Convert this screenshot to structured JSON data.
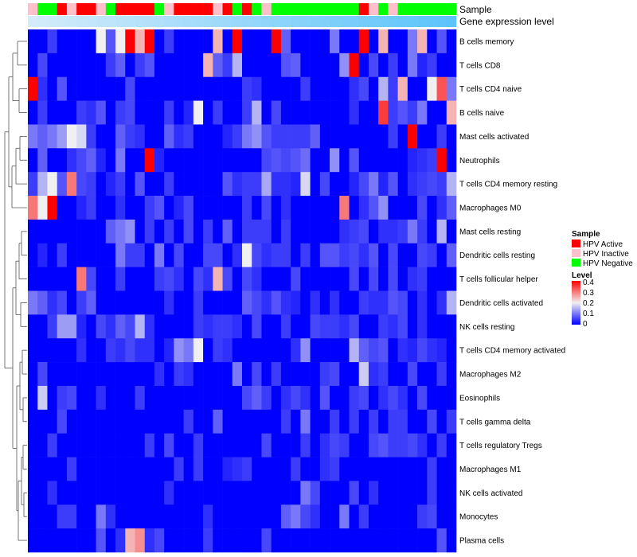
{
  "chart_data": {
    "type": "heatmap",
    "track_labels": [
      "Sample",
      "Gene expression level"
    ],
    "sample_groups": [
      "Inactive",
      "Negative",
      "Negative",
      "Active",
      "Inactive",
      "Active",
      "Active",
      "Inactive",
      "Negative",
      "Active",
      "Active",
      "Active",
      "Active",
      "Negative",
      "Inactive",
      "Active",
      "Active",
      "Active",
      "Active",
      "Inactive",
      "Active",
      "Negative",
      "Active",
      "Negative",
      "Inactive",
      "Negative",
      "Negative",
      "Negative",
      "Negative",
      "Negative",
      "Negative",
      "Negative",
      "Negative",
      "Negative",
      "Active",
      "Inactive",
      "Negative",
      "Inactive",
      "Negative",
      "Negative",
      "Negative",
      "Negative",
      "Negative",
      "Negative"
    ],
    "rows": [
      "B cells memory",
      "T cells CD8",
      "T cells CD4 naive",
      "B cells naive",
      "Mast cells activated",
      "Neutrophils",
      "T cells CD4 memory resting",
      "Macrophages M0",
      "Mast cells resting",
      "Dendritic cells resting",
      "T cells follicular helper",
      "Dendritic cells activated",
      "NK cells resting",
      "T cells CD4 memory activated",
      "Macrophages M2",
      "Eosinophils",
      "T cells gamma delta",
      "T cells regulatory  Tregs",
      "Macrophages M1",
      "NK cells activated",
      "Monocytes",
      "Plasma cells"
    ],
    "values": [
      [
        0,
        0,
        0.05,
        0,
        0,
        0,
        0,
        0.2,
        0.07,
        0.2,
        0.4,
        0.25,
        0.4,
        0,
        0.05,
        0,
        0,
        0,
        0,
        0.25,
        0,
        0.4,
        0,
        0,
        0,
        0.4,
        0.08,
        0,
        0,
        0,
        0,
        0.1,
        0,
        0,
        0.4,
        0,
        0.25,
        0,
        0,
        0.1,
        0.25,
        0,
        0.07,
        0
      ],
      [
        0,
        0.06,
        0,
        0,
        0,
        0,
        0,
        0,
        0.05,
        0.08,
        0,
        0.05,
        0.07,
        0,
        0,
        0,
        0,
        0,
        0.25,
        0.08,
        0.05,
        0.15,
        0,
        0,
        0,
        0,
        0.07,
        0.08,
        0,
        0,
        0,
        0,
        0.12,
        0.4,
        0,
        0.06,
        0,
        0.05,
        0,
        0.1,
        0.03,
        0.05,
        0,
        0
      ],
      [
        0.4,
        0.04,
        0,
        0.07,
        0,
        0,
        0,
        0,
        0,
        0,
        0.06,
        0,
        0,
        0,
        0,
        0,
        0,
        0,
        0,
        0,
        0,
        0,
        0.05,
        0.04,
        0,
        0,
        0,
        0,
        0.05,
        0,
        0,
        0,
        0,
        0.04,
        0.06,
        0,
        0.15,
        0.05,
        0.25,
        0,
        0,
        0.2,
        0.33,
        0.1
      ],
      [
        0,
        0.05,
        0,
        0,
        0,
        0.05,
        0.04,
        0.07,
        0,
        0.05,
        0.06,
        0,
        0,
        0,
        0.05,
        0,
        0.03,
        0.2,
        0,
        0.05,
        0,
        0,
        0.05,
        0.15,
        0,
        0.06,
        0,
        0,
        0,
        0,
        0,
        0,
        0,
        0.04,
        0,
        0,
        0.35,
        0.05,
        0.07,
        0.05,
        0.1,
        0,
        0,
        0.25
      ],
      [
        0.1,
        0.08,
        0.1,
        0.13,
        0.2,
        0.18,
        0.05,
        0,
        0,
        0.08,
        0.05,
        0.04,
        0,
        0,
        0.08,
        0.04,
        0.05,
        0,
        0,
        0,
        0.03,
        0.05,
        0.1,
        0.12,
        0.07,
        0.05,
        0.05,
        0.05,
        0.05,
        0.08,
        0,
        0,
        0,
        0,
        0,
        0,
        0,
        0.05,
        0,
        0.4,
        0,
        0,
        0.05,
        0
      ],
      [
        0,
        0.08,
        0,
        0,
        0.04,
        0.06,
        0.08,
        0.03,
        0,
        0.1,
        0,
        0,
        0.4,
        0.03,
        0,
        0,
        0,
        0,
        0,
        0,
        0,
        0,
        0,
        0,
        0.06,
        0.07,
        0.06,
        0.07,
        0.09,
        0,
        0,
        0.12,
        0,
        0.07,
        0,
        0,
        0,
        0,
        0,
        0.03,
        0.04,
        0.05,
        0.4,
        0
      ],
      [
        0.05,
        0.15,
        0.2,
        0.07,
        0.3,
        0.06,
        0.05,
        0,
        0.03,
        0.05,
        0,
        0.07,
        0,
        0,
        0.05,
        0,
        0,
        0,
        0,
        0,
        0.07,
        0.04,
        0.05,
        0.05,
        0.14,
        0.04,
        0.04,
        0.03,
        0.18,
        0,
        0.06,
        0,
        0,
        0.03,
        0.06,
        0.1,
        0.03,
        0.07,
        0,
        0.04,
        0.05,
        0.06,
        0.05,
        0.15
      ],
      [
        0.3,
        0.2,
        0.4,
        0,
        0,
        0.03,
        0.05,
        0,
        0,
        0.04,
        0,
        0,
        0.05,
        0.07,
        0,
        0.03,
        0.06,
        0,
        0,
        0,
        0,
        0,
        0.05,
        0,
        0.06,
        0,
        0.04,
        0,
        0,
        0,
        0,
        0,
        0.3,
        0,
        0.04,
        0.07,
        0.12,
        0,
        0,
        0,
        0.06,
        0,
        0.04,
        0.08
      ],
      [
        0,
        0,
        0,
        0,
        0,
        0,
        0,
        0,
        0.08,
        0.1,
        0.12,
        0,
        0.05,
        0,
        0.05,
        0,
        0.06,
        0,
        0.05,
        0,
        0.08,
        0,
        0.05,
        0.05,
        0.05,
        0,
        0.05,
        0,
        0,
        0,
        0,
        0,
        0.04,
        0.05,
        0.06,
        0,
        0.04,
        0.04,
        0.05,
        0.1,
        0.05,
        0,
        0.15,
        0
      ],
      [
        0,
        0.03,
        0,
        0.05,
        0,
        0,
        0,
        0,
        0,
        0.1,
        0.05,
        0.05,
        0,
        0.1,
        0,
        0.06,
        0,
        0,
        0.06,
        0.06,
        0,
        0.04,
        0.2,
        0.06,
        0.04,
        0.05,
        0.05,
        0,
        0.05,
        0,
        0.07,
        0.07,
        0.05,
        0.06,
        0.04,
        0.07,
        0,
        0.06,
        0,
        0,
        0.06,
        0.05,
        0,
        0.08
      ],
      [
        0,
        0,
        0,
        0,
        0,
        0.3,
        0.06,
        0,
        0,
        0.05,
        0,
        0,
        0,
        0.05,
        0.06,
        0.04,
        0,
        0.06,
        0.04,
        0.25,
        0.06,
        0,
        0.06,
        0.04,
        0,
        0,
        0,
        0.06,
        0,
        0,
        0,
        0,
        0,
        0.06,
        0,
        0.06,
        0,
        0.06,
        0,
        0.04,
        0.05,
        0,
        0,
        0
      ],
      [
        0.1,
        0.08,
        0.04,
        0.06,
        0,
        0.05,
        0.08,
        0,
        0,
        0,
        0,
        0,
        0,
        0,
        0.04,
        0,
        0,
        0.05,
        0,
        0,
        0,
        0,
        0.08,
        0.06,
        0.04,
        0.07,
        0.04,
        0.03,
        0,
        0.04,
        0,
        0.04,
        0,
        0,
        0.05,
        0.04,
        0.04,
        0.07,
        0.06,
        0,
        0.04,
        0,
        0.04,
        0.15
      ],
      [
        0,
        0,
        0.05,
        0.13,
        0.13,
        0.03,
        0,
        0.06,
        0.04,
        0.08,
        0.06,
        0.15,
        0.04,
        0,
        0,
        0,
        0,
        0.05,
        0.04,
        0.05,
        0.05,
        0.04,
        0,
        0.06,
        0,
        0,
        0.05,
        0,
        0,
        0.06,
        0.05,
        0.05,
        0.04,
        0.06,
        0,
        0,
        0.05,
        0.04,
        0.06,
        0,
        0.04,
        0,
        0,
        0
      ],
      [
        0,
        0,
        0,
        0,
        0,
        0.04,
        0,
        0,
        0.05,
        0.04,
        0.06,
        0.04,
        0.04,
        0,
        0.03,
        0.12,
        0.1,
        0.2,
        0,
        0.05,
        0.04,
        0,
        0,
        0,
        0,
        0,
        0,
        0.04,
        0.12,
        0,
        0,
        0,
        0,
        0.15,
        0.08,
        0.06,
        0.07,
        0,
        0.04,
        0.03,
        0.06,
        0.04,
        0.03,
        0
      ],
      [
        0,
        0.06,
        0,
        0,
        0,
        0,
        0,
        0,
        0,
        0,
        0,
        0,
        0,
        0.04,
        0,
        0.05,
        0.04,
        0,
        0,
        0,
        0,
        0.1,
        0,
        0.06,
        0,
        0.05,
        0,
        0,
        0,
        0,
        0.05,
        0.06,
        0,
        0,
        0.17,
        0.04,
        0.05,
        0,
        0,
        0.06,
        0,
        0,
        0.05,
        0
      ],
      [
        0,
        0.17,
        0,
        0.05,
        0.06,
        0,
        0,
        0.04,
        0,
        0,
        0,
        0.05,
        0,
        0,
        0,
        0,
        0,
        0,
        0,
        0,
        0,
        0,
        0.06,
        0.08,
        0.05,
        0,
        0.04,
        0.06,
        0.04,
        0,
        0.07,
        0,
        0,
        0.05,
        0.06,
        0,
        0.04,
        0.06,
        0.04,
        0,
        0.06,
        0,
        0,
        0
      ],
      [
        0,
        0,
        0,
        0.06,
        0,
        0,
        0,
        0,
        0,
        0,
        0,
        0,
        0,
        0,
        0,
        0,
        0.05,
        0,
        0,
        0.08,
        0,
        0,
        0,
        0,
        0,
        0,
        0.05,
        0,
        0.1,
        0,
        0,
        0.05,
        0,
        0.05,
        0,
        0.05,
        0,
        0.05,
        0.05,
        0,
        0,
        0.06,
        0,
        0.05
      ],
      [
        0,
        0,
        0.05,
        0,
        0,
        0,
        0,
        0,
        0,
        0,
        0,
        0,
        0.05,
        0,
        0.06,
        0,
        0,
        0.05,
        0,
        0,
        0,
        0,
        0,
        0,
        0.06,
        0,
        0,
        0,
        0.05,
        0,
        0.04,
        0.06,
        0.05,
        0,
        0,
        0.06,
        0.07,
        0.05,
        0.05,
        0.06,
        0.04,
        0,
        0.05,
        0
      ],
      [
        0,
        0,
        0,
        0,
        0.05,
        0,
        0,
        0,
        0,
        0,
        0,
        0,
        0,
        0,
        0,
        0.05,
        0,
        0.05,
        0,
        0,
        0.03,
        0.04,
        0.05,
        0,
        0,
        0,
        0,
        0.05,
        0,
        0,
        0.04,
        0.05,
        0,
        0,
        0,
        0,
        0,
        0,
        0,
        0,
        0,
        0.05,
        0,
        0
      ],
      [
        0,
        0,
        0.04,
        0,
        0,
        0,
        0,
        0,
        0,
        0,
        0,
        0,
        0,
        0,
        0.04,
        0,
        0,
        0,
        0,
        0,
        0,
        0,
        0,
        0,
        0,
        0,
        0,
        0,
        0.1,
        0.06,
        0,
        0,
        0,
        0.06,
        0,
        0.04,
        0,
        0,
        0,
        0,
        0,
        0.05,
        0,
        0
      ],
      [
        0,
        0,
        0,
        0.05,
        0.05,
        0,
        0,
        0.1,
        0.04,
        0,
        0,
        0,
        0,
        0,
        0,
        0,
        0,
        0,
        0.04,
        0,
        0,
        0,
        0,
        0,
        0,
        0,
        0.08,
        0.1,
        0.06,
        0.04,
        0,
        0,
        0.1,
        0,
        0.05,
        0,
        0,
        0,
        0,
        0,
        0.05,
        0.06,
        0,
        0
      ],
      [
        0,
        0,
        0,
        0,
        0,
        0,
        0,
        0.07,
        0,
        0.04,
        0.25,
        0.28,
        0.04,
        0.06,
        0,
        0,
        0,
        0,
        0.05,
        0,
        0,
        0,
        0,
        0,
        0.06,
        0,
        0,
        0,
        0,
        0,
        0,
        0,
        0,
        0,
        0,
        0,
        0,
        0,
        0,
        0,
        0,
        0,
        0.07,
        0
      ]
    ],
    "color_scale": {
      "title": "Level",
      "min": 0,
      "max": 0.4,
      "ticks": [
        "0.4",
        "0.3",
        "0.2",
        "0.1",
        "0"
      ],
      "colors": [
        "#0000ff",
        "#f0f0f0",
        "#ff0000"
      ]
    },
    "sample_legend": {
      "title": "Sample",
      "entries": [
        {
          "key": "Active",
          "label": "HPV Active",
          "color": "#ff0000"
        },
        {
          "key": "Inactive",
          "label": "HPV Inactive",
          "color": "#ffc0cb"
        },
        {
          "key": "Negative",
          "label": "HPV Negative",
          "color": "#00ff00"
        }
      ]
    }
  }
}
